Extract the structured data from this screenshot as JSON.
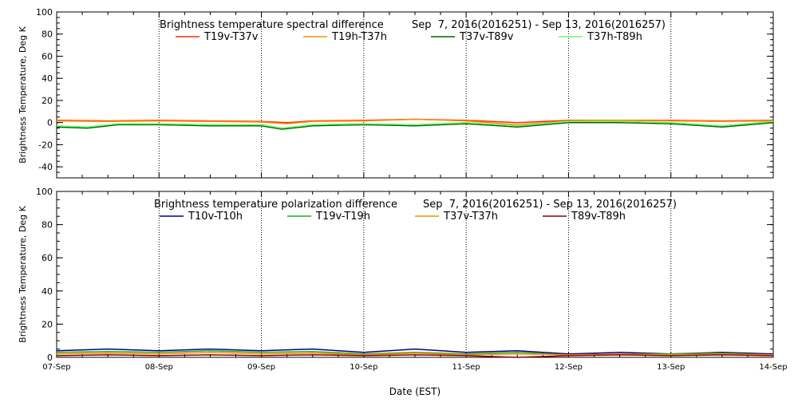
{
  "chart_data": [
    {
      "type": "line",
      "title": "Brightness temperature spectral difference",
      "date_range": "Sep  7, 2016(2016251) - Sep 13, 2016(2016257)",
      "ylabel": "Brightness Temperature, Deg K",
      "ylim": [
        -50,
        100
      ],
      "yticks": [
        "-40",
        "-20",
        "0",
        "20",
        "40",
        "60",
        "80",
        "100"
      ],
      "xlim": [
        0,
        7
      ],
      "grid": "vertical-dotted",
      "legend": "top",
      "series": [
        {
          "name": "T19v-T37v",
          "color": "#ff2a00",
          "x": [
            0,
            0.5,
            1,
            1.5,
            2,
            2.25,
            2.5,
            3,
            3.5,
            4,
            4.5,
            5,
            5.5,
            6,
            6.5,
            7
          ],
          "y": [
            2,
            1.5,
            2,
            1.5,
            1,
            0,
            1.5,
            2,
            3,
            2,
            0,
            2,
            2,
            2,
            1.5,
            2
          ]
        },
        {
          "name": "T19h-T37h",
          "color": "#ff8c00",
          "x": [
            0,
            0.5,
            1,
            1.5,
            2,
            2.25,
            2.5,
            3,
            3.5,
            4,
            4.5,
            5,
            5.5,
            6,
            6.5,
            7
          ],
          "y": [
            1.5,
            1,
            1.5,
            1,
            0.5,
            -1,
            1,
            1.5,
            3,
            1.5,
            -2,
            1.5,
            2,
            1.5,
            1,
            1.5
          ]
        },
        {
          "name": "T37v-T89v",
          "color": "#006400",
          "x": [
            0,
            0.3,
            0.6,
            1,
            1.5,
            2,
            2.2,
            2.5,
            3,
            3.5,
            4,
            4.5,
            5,
            5.5,
            6,
            6.5,
            7
          ],
          "y": [
            -4,
            -5,
            -2,
            -2,
            -3,
            -3,
            -6,
            -3,
            -2,
            -3,
            -1,
            -4,
            0,
            0,
            -1,
            -4,
            0
          ]
        },
        {
          "name": "T37h-T89h",
          "color": "#66ff66",
          "x": [
            0,
            0.3,
            0.6,
            1,
            1.5,
            2,
            2.2,
            2.5,
            3,
            3.5,
            4,
            4.5,
            5,
            5.5,
            6,
            6.5,
            7
          ],
          "y": [
            -3,
            -4,
            -1,
            -1,
            -2,
            -2,
            -5,
            -2,
            -1,
            -2,
            0,
            -3,
            1,
            1,
            0,
            -3,
            1
          ]
        }
      ]
    },
    {
      "type": "line",
      "title": "Brightness temperature polarization difference",
      "date_range": "Sep  7, 2016(2016251) - Sep 13, 2016(2016257)",
      "ylabel": "Brightness Temperature, Deg K",
      "xlabel": "Date (EST)",
      "ylim": [
        0,
        100
      ],
      "yticks": [
        "0",
        "20",
        "40",
        "60",
        "80",
        "100"
      ],
      "xlim": [
        0,
        7
      ],
      "xticks": [
        "07-Sep",
        "08-Sep",
        "09-Sep",
        "10-Sep",
        "11-Sep",
        "12-Sep",
        "13-Sep",
        "14-Sep"
      ],
      "grid": "vertical-dotted",
      "legend": "top",
      "series": [
        {
          "name": "T10v-T10h",
          "color": "#00008b",
          "x": [
            0,
            0.5,
            1,
            1.5,
            2,
            2.5,
            3,
            3.5,
            4,
            4.5,
            5,
            5.5,
            6,
            6.5,
            7
          ],
          "y": [
            4,
            5,
            4,
            5,
            4,
            5,
            3,
            5,
            3,
            4,
            2,
            3,
            2,
            3,
            2
          ]
        },
        {
          "name": "T19v-T19h",
          "color": "#1faa1f",
          "x": [
            0,
            0.5,
            1,
            1.5,
            2,
            2.5,
            3,
            3.5,
            4,
            4.5,
            5,
            5.5,
            6,
            6.5,
            7
          ],
          "y": [
            3,
            3.5,
            3,
            4,
            3,
            3.5,
            2,
            3,
            2,
            3,
            1.5,
            2,
            2,
            2.5,
            1.5
          ]
        },
        {
          "name": "T37v-T37h",
          "color": "#ff8c00",
          "x": [
            0,
            0.5,
            1,
            1.5,
            2,
            2.5,
            3,
            3.5,
            4,
            4.5,
            5,
            5.5,
            6,
            6.5,
            7
          ],
          "y": [
            2,
            2.5,
            2,
            3,
            2,
            2.5,
            1.5,
            2.5,
            1.5,
            2,
            1.5,
            2,
            1.5,
            2,
            1.5
          ]
        },
        {
          "name": "T89v-T89h",
          "color": "#8b0000",
          "x": [
            0,
            0.5,
            1,
            1.5,
            2,
            2.5,
            3,
            3.5,
            4,
            4.5,
            5,
            5.5,
            6,
            6.5,
            7
          ],
          "y": [
            1,
            1.5,
            1,
            1.5,
            1,
            1.5,
            1,
            1.5,
            1,
            0,
            1,
            1.5,
            1,
            1.5,
            1
          ]
        }
      ]
    }
  ]
}
